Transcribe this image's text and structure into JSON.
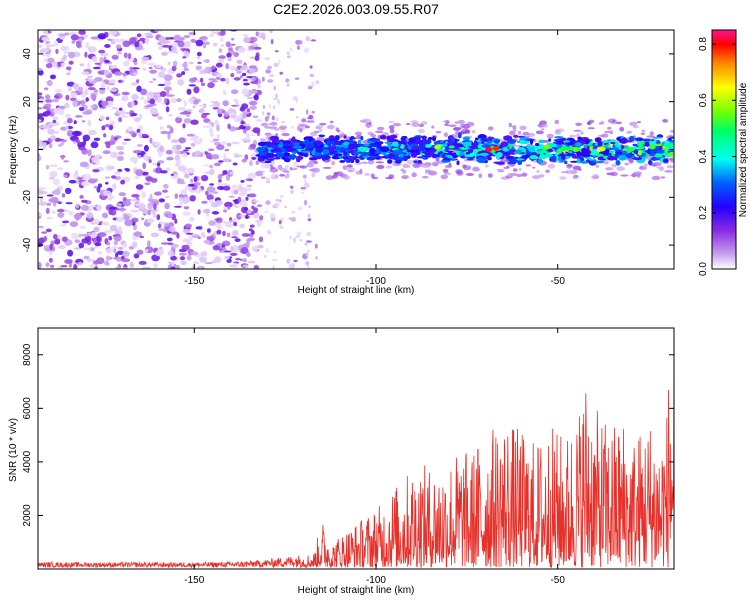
{
  "title": "C2E2.2026.003.09.55.R07",
  "colors": {
    "snr_line": "#e8302a",
    "frame": "#000000",
    "background": "#ffffff"
  },
  "chart_data": [
    {
      "type": "heatmap",
      "name": "spectrogram",
      "title": "C2E2.2026.003.09.55.R07",
      "xlabel": "Height of straight line (km)",
      "ylabel": "Frequency (Hz)",
      "xlim": [
        -193,
        -18
      ],
      "ylim": [
        -50,
        50
      ],
      "xticks": [
        -150,
        -100,
        -50
      ],
      "xticklabels": [
        "-150",
        "-100",
        "-50"
      ],
      "yticks": [
        -40,
        -20,
        0,
        20,
        40
      ],
      "yticklabels": [
        "-40",
        "-20",
        "0",
        "20",
        "40"
      ],
      "grid": false,
      "regions": [
        {
          "x_range": [
            -193,
            -132
          ],
          "description": "broadband noise",
          "amplitude": [
            0.02,
            0.18
          ]
        },
        {
          "x_range": [
            -132,
            -116
          ],
          "description": "transition",
          "amplitude": [
            0.03,
            0.2
          ]
        },
        {
          "x_range": [
            -132,
            -18
          ],
          "freq_center": 0,
          "freq_halfwidth": 5,
          "description": "signal band",
          "amplitude_peak": 0.82
        }
      ],
      "peak": {
        "x": -69,
        "y": 0,
        "amplitude": 0.82
      }
    },
    {
      "type": "colorbar",
      "name": "amplitude-colorbar",
      "label": "Normalized spectral amplitude",
      "range": [
        0.0,
        0.85
      ],
      "ticks": [
        0.0,
        0.2,
        0.4,
        0.6,
        0.8
      ],
      "ticklabels": [
        "0.0",
        "0.2",
        "0.4",
        "0.6",
        "0.8"
      ],
      "colormap": [
        "#ffffff",
        "#8a2be2",
        "#0000ff",
        "#00ffff",
        "#00ff00",
        "#ffff00",
        "#ff0000",
        "#ff1493"
      ]
    },
    {
      "type": "line",
      "name": "snr-plot",
      "xlabel": "Height of straight line (km)",
      "ylabel": "SNR (10 * v/v)",
      "xlim": [
        -193,
        -18
      ],
      "ylim": [
        0,
        9000
      ],
      "xticks": [
        -150,
        -100,
        -50
      ],
      "xticklabels": [
        "-150",
        "-100",
        "-50"
      ],
      "yticks": [
        2000,
        4000,
        6000,
        8000
      ],
      "yticklabels": [
        "2000",
        "4000",
        "6000",
        "8000"
      ],
      "grid": false,
      "series": [
        {
          "name": "SNR",
          "x": [
            -190,
            -180,
            -170,
            -160,
            -150,
            -140,
            -135,
            -130,
            -125,
            -120,
            -117,
            -115,
            -112,
            -110,
            -108,
            -106,
            -104,
            -102,
            -100,
            -98,
            -96,
            -94,
            -92,
            -90,
            -88,
            -86,
            -84,
            -82,
            -80,
            -78,
            -76,
            -74,
            -72,
            -70,
            -68,
            -66,
            -64,
            -62,
            -60,
            -58,
            -56,
            -54,
            -52,
            -50,
            -48,
            -46,
            -44,
            -42,
            -40,
            -38,
            -36,
            -34,
            -32,
            -30,
            -28,
            -26,
            -24,
            -22,
            -20,
            -19
          ],
          "values": [
            250,
            250,
            250,
            250,
            250,
            270,
            300,
            360,
            450,
            550,
            620,
            1900,
            1000,
            1300,
            1500,
            1700,
            1900,
            2100,
            2300,
            2500,
            3000,
            3200,
            3500,
            3800,
            4100,
            3800,
            3900,
            4000,
            4200,
            4400,
            4500,
            4300,
            4800,
            5000,
            5300,
            5600,
            5800,
            5400,
            5200,
            5000,
            4800,
            5100,
            5400,
            5200,
            5000,
            5500,
            6200,
            7600,
            6000,
            5800,
            5400,
            5600,
            5800,
            5000,
            5200,
            5500,
            5800,
            5200,
            6000,
            9000
          ],
          "description": "noisy envelope of SNR peaks; baseline near 250 below -120 km, rising strongly toward -20 km"
        }
      ]
    }
  ]
}
